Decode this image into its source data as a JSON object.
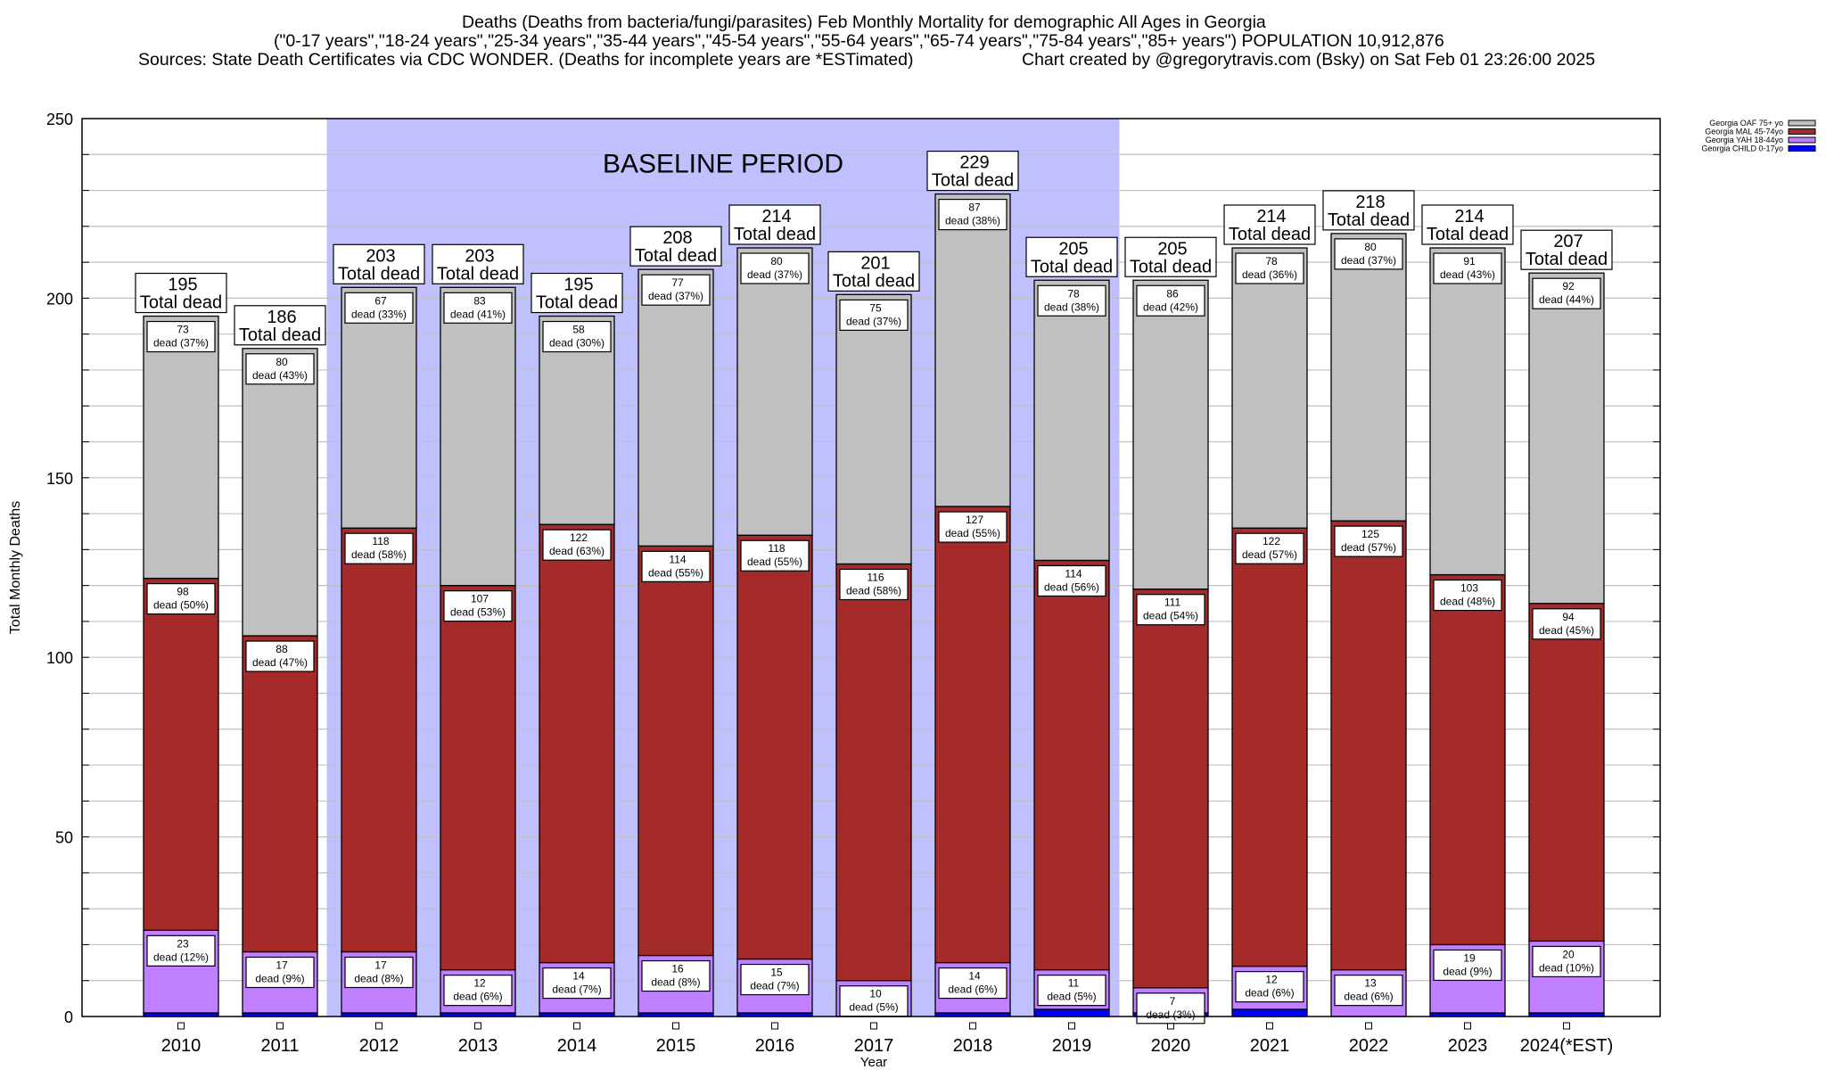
{
  "header": {
    "line1": "Deaths (Deaths from bacteria/fungi/parasites) Feb Monthly Mortality for demographic All Ages in Georgia",
    "line2": "(\"0-17 years\",\"18-24 years\",\"25-34 years\",\"35-44 years\",\"45-54 years\",\"55-64 years\",\"65-74 years\",\"75-84 years\",\"85+ years\") POPULATION 10,912,876",
    "line3_left": "Sources: State Death Certificates via CDC WONDER. (Deaths for incomplete years are *ESTimated)",
    "line3_right": "Chart created by @gregorytravis.com (Bsky) on Sat Feb 01 23:26:00 2025"
  },
  "chart_data": {
    "type": "bar",
    "stacked": true,
    "title": "Deaths (Deaths from bacteria/fungi/parasites) Feb Monthly Mortality for demographic All Ages in Georgia",
    "xlabel": "Year",
    "ylabel": "Total Monthly Deaths",
    "ylim": [
      0,
      250
    ],
    "yticks": [
      0,
      50,
      100,
      150,
      200,
      250
    ],
    "minor_grid_step": 10,
    "grid": true,
    "legend_position": "top-right",
    "categories": [
      "2010",
      "2011",
      "2012",
      "2013",
      "2014",
      "2015",
      "2016",
      "2017",
      "2018",
      "2019",
      "2020",
      "2021",
      "2022",
      "2023",
      "2024(*EST)"
    ],
    "series": [
      {
        "name": "Georgia CHILD 0-17yo",
        "color": "#0000ff",
        "values": [
          1,
          1,
          1,
          1,
          1,
          1,
          1,
          0,
          1,
          2,
          1,
          2,
          0,
          1,
          1
        ],
        "pct": [
          null,
          null,
          null,
          null,
          null,
          null,
          null,
          null,
          null,
          null,
          null,
          null,
          null,
          null,
          null
        ]
      },
      {
        "name": "Georgia YAH 18-44yo",
        "color": "#c080ff",
        "values": [
          23,
          17,
          17,
          12,
          14,
          16,
          15,
          10,
          14,
          11,
          7,
          12,
          13,
          19,
          20
        ],
        "pct": [
          "12%",
          "9%",
          "8%",
          "6%",
          "7%",
          "8%",
          "7%",
          "5%",
          "6%",
          "5%",
          "3%",
          "6%",
          "6%",
          "9%",
          "10%"
        ]
      },
      {
        "name": "Georgia MAL 45-74yo",
        "color": "#a52a2a",
        "values": [
          98,
          88,
          118,
          107,
          122,
          114,
          118,
          116,
          127,
          114,
          111,
          122,
          125,
          103,
          94
        ],
        "pct": [
          "50%",
          "47%",
          "58%",
          "53%",
          "63%",
          "55%",
          "55%",
          "58%",
          "55%",
          "56%",
          "54%",
          "57%",
          "57%",
          "48%",
          "45%"
        ]
      },
      {
        "name": "Georgia OAF 75+ yo",
        "color": "#c0c0c0",
        "values": [
          73,
          80,
          67,
          83,
          58,
          77,
          80,
          75,
          87,
          78,
          86,
          78,
          80,
          91,
          92
        ],
        "pct": [
          "37%",
          "43%",
          "33%",
          "41%",
          "30%",
          "37%",
          "37%",
          "37%",
          "38%",
          "38%",
          "42%",
          "36%",
          "37%",
          "43%",
          "44%"
        ]
      }
    ],
    "totals": [
      195,
      186,
      203,
      203,
      195,
      208,
      214,
      201,
      229,
      205,
      205,
      214,
      218,
      214,
      207
    ],
    "total_label_suffix": "Total dead",
    "segment_label_prefix": "dead",
    "legend_order": [
      "Georgia OAF 75+ yo",
      "Georgia MAL 45-74yo",
      "Georgia YAH 18-44yo",
      "Georgia CHILD 0-17yo"
    ],
    "annotations": [
      {
        "text": "BASELINE PERIOD",
        "x_start_category": "2012",
        "x_end_category": "2019",
        "shade_color": "#c0c0ff"
      }
    ]
  }
}
